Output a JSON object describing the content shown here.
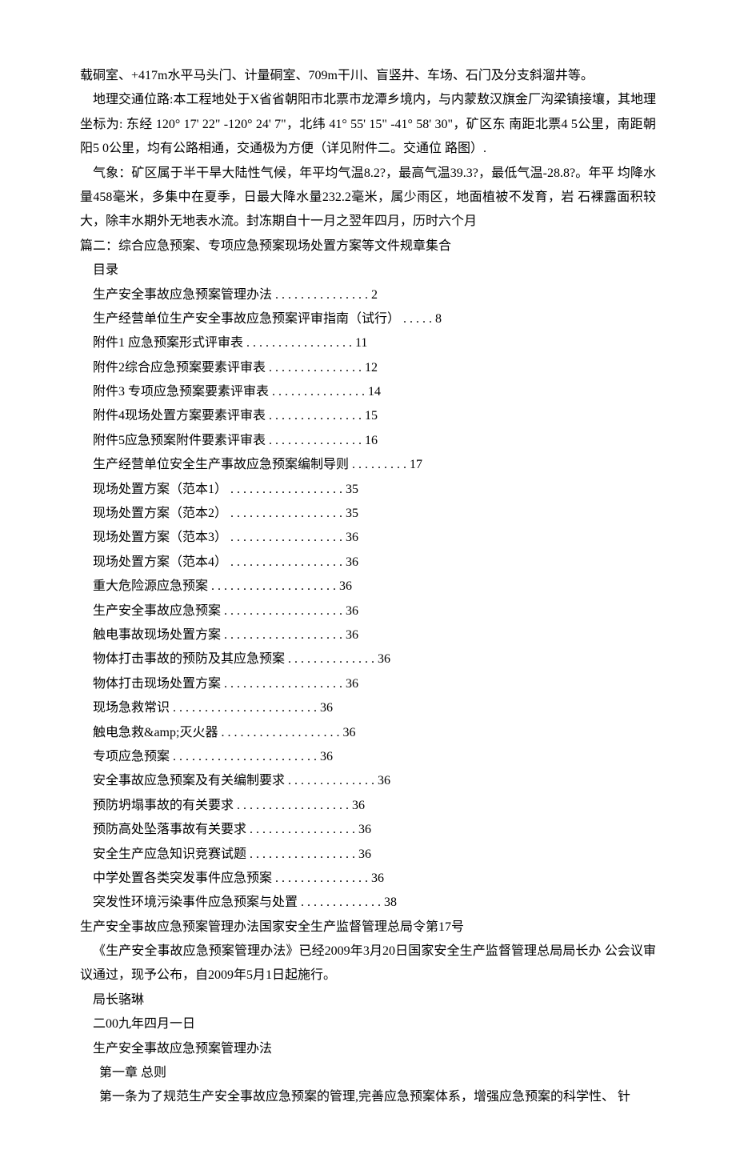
{
  "paragraphs": {
    "p1": "载硐室、+417m水平马头门、计量硐室、709m干川、盲竖井、车场、石门及分支斜溜井等。",
    "p2": "地理交通位路:本工程地处于X省省朝阳市北票市龙潭乡境内，与内蒙敖汉旗金厂沟梁镇接壤，其地理坐标为: 东经 120° 17' 22\" -120° 24' 7\"，北纬 41° 55' 15\" -41° 58' 30\"，矿区东 南距北票4 5公里，南距朝阳5 0公里，均有公路相通，交通极为方便（详见附件二。交通位 路图）.",
    "p3": "气象：矿区属于半干旱大陆性气候，年平均气温8.2?，最高气温39.3?，最低气温-28.8?。年平 均降水量458毫米，多集中在夏季，日最大降水量232.2毫米，属少雨区，地面植被不发育，岩 石裸露面积较大，除丰水期外无地表水流。封冻期自十一月之翌年四月，历时六个月"
  },
  "section2_title": "篇二：综合应急预案、专项应急预案现场处置方案等文件规章集合",
  "toc_title": "目录",
  "toc": [
    {
      "label": "生产安全事故应急预案管理办法",
      "page": "2"
    },
    {
      "label": "生产经营单位生产安全事故应急预案评审指南（试行）",
      "page": "8"
    },
    {
      "label": "附件1 应急预案形式评审表",
      "page": "11"
    },
    {
      "label": "附件2综合应急预案要素评审表",
      "page": "12"
    },
    {
      "label": "附件3 专项应急预案要素评审表",
      "page": "14"
    },
    {
      "label": "附件4现场处置方案要素评审表",
      "page": "15"
    },
    {
      "label": "附件5应急预案附件要素评审表 ",
      "page": "16"
    },
    {
      "label": "生产经营单位安全生产事故应急预案编制导则",
      "page": "17"
    },
    {
      "label": "现场处置方案（范本1）",
      "page": "35"
    },
    {
      "label": "现场处置方案（范本2）",
      "page": "35"
    },
    {
      "label": "现场处置方案（范本3）",
      "page": "36"
    },
    {
      "label": "现场处置方案（范本4）",
      "page": "36"
    },
    {
      "label": "重大危险源应急预案",
      "page": "36"
    },
    {
      "label": "生产安全事故应急预案",
      "page": "36"
    },
    {
      "label": "触电事故现场处置方案",
      "page": "36"
    },
    {
      "label": "物体打击事故的预防及其应急预案",
      "page": "36"
    },
    {
      "label": "物体打击现场处置方案",
      "page": "36"
    },
    {
      "label": "现场急救常识",
      "page": "36"
    },
    {
      "label": "触电急救&amp;灭火器",
      "page": "36"
    },
    {
      "label": "专项应急预案",
      "page": "36"
    },
    {
      "label": "安全事故应急预案及有关编制要求",
      "page": "36"
    },
    {
      "label": "预防坍塌事故的有关要求",
      "page": "36"
    },
    {
      "label": "预防高处坠落事故有关要求",
      "page": "36"
    },
    {
      "label": "安全生产应急知识竞赛试题",
      "page": "36"
    },
    {
      "label": "中学处置各类突发事件应急预案",
      "page": "36"
    },
    {
      "label": "突发性环境污染事件应急预案与处置",
      "page": "38"
    }
  ],
  "footer": {
    "line1": "生产安全事故应急预案管理办法国家安全生产监督管理总局令第17号",
    "line2": "《生产安全事故应急预案管理办法》已经2009年3月20日国家安全生产监督管理总局局长办 公会议审议通过，现予公布，自2009年5月1日起施行。",
    "line3": "局长骆琳",
    "line4": "二00九年四月一日",
    "line5": "生产安全事故应急预案管理办法",
    "line6": "第一章 总则",
    "line7": "第一条为了规范生产安全事故应急预案的管理,完善应急预案体系，增强应急预案的科学性、 针"
  }
}
